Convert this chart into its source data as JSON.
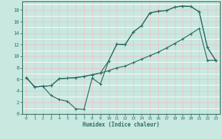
{
  "xlabel": "Humidex (Indice chaleur)",
  "bg_color": "#c8e8e0",
  "grid_major_color": "#e8c8cc",
  "grid_minor_color": "#ffffff",
  "line_color": "#2d6e64",
  "xlim": [
    -0.5,
    23.5
  ],
  "ylim": [
    0,
    19.5
  ],
  "xticks": [
    0,
    1,
    2,
    3,
    4,
    5,
    6,
    7,
    8,
    9,
    10,
    11,
    12,
    13,
    14,
    15,
    16,
    17,
    18,
    19,
    20,
    21,
    22,
    23
  ],
  "yticks": [
    0,
    2,
    4,
    6,
    8,
    10,
    12,
    14,
    16,
    18
  ],
  "line1_x": [
    0,
    1,
    2,
    3,
    4,
    5,
    6,
    7,
    8,
    9,
    10,
    11,
    12,
    13,
    14,
    15,
    16,
    17,
    18,
    19,
    20,
    21,
    22,
    23
  ],
  "line1_y": [
    6.3,
    4.7,
    4.8,
    3.2,
    2.5,
    2.2,
    0.9,
    0.8,
    6.2,
    5.2,
    9.2,
    12.1,
    12.0,
    14.2,
    15.3,
    17.5,
    17.8,
    17.9,
    18.5,
    18.7,
    18.6,
    17.7,
    11.5,
    9.3
  ],
  "line2_x": [
    0,
    1,
    2,
    3,
    4,
    5,
    6,
    7,
    8,
    9,
    10,
    11,
    12,
    13,
    14,
    15,
    16,
    17,
    18,
    19,
    20,
    21,
    22,
    23
  ],
  "line2_y": [
    6.3,
    4.7,
    4.8,
    4.9,
    6.1,
    6.2,
    6.3,
    6.5,
    6.8,
    7.1,
    7.5,
    8.0,
    8.3,
    8.9,
    9.5,
    10.1,
    10.7,
    11.4,
    12.2,
    13.0,
    13.9,
    14.8,
    9.3,
    9.3
  ],
  "line3_x": [
    0,
    1,
    2,
    3,
    4,
    5,
    6,
    7,
    8,
    9,
    10,
    11,
    12,
    13,
    14,
    15,
    16,
    17,
    18,
    19,
    20,
    21,
    22,
    23
  ],
  "line3_y": [
    6.3,
    4.7,
    4.8,
    4.9,
    6.1,
    6.2,
    6.3,
    6.5,
    6.8,
    7.1,
    9.2,
    12.1,
    12.0,
    14.2,
    15.3,
    17.5,
    17.8,
    17.9,
    18.5,
    18.7,
    18.6,
    17.7,
    11.5,
    9.3
  ]
}
